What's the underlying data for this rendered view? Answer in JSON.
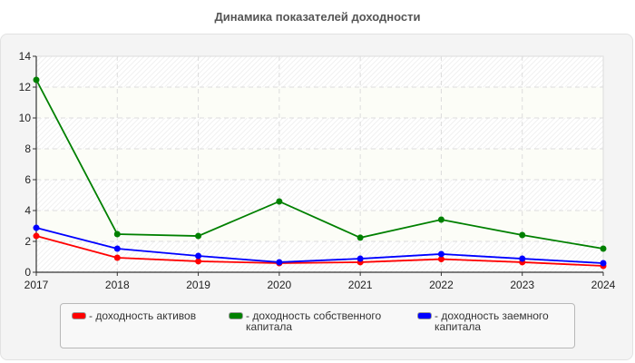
{
  "title": "Динамика показателей доходности",
  "chart_data": {
    "type": "line",
    "title": "Динамика показателей доходности",
    "xlabel": "",
    "ylabel": "",
    "categories": [
      "2017",
      "2018",
      "2019",
      "2020",
      "2021",
      "2022",
      "2023",
      "2024"
    ],
    "ylim": [
      0,
      14
    ],
    "yticks": [
      0,
      2,
      4,
      6,
      8,
      10,
      12,
      14
    ],
    "grid": true,
    "legend_position": "bottom",
    "series": [
      {
        "name": "доходность активов",
        "color": "#ff0000",
        "values": [
          2.35,
          0.94,
          0.71,
          0.59,
          0.65,
          0.85,
          0.65,
          0.41
        ]
      },
      {
        "name": "доходность собственного капитала",
        "color": "#008000",
        "values": [
          12.47,
          2.47,
          2.35,
          4.59,
          2.24,
          3.41,
          2.41,
          1.53
        ]
      },
      {
        "name": "доходность заемного капитала",
        "color": "#0000ff",
        "values": [
          2.88,
          1.53,
          1.06,
          0.65,
          0.88,
          1.18,
          0.88,
          0.59
        ]
      }
    ]
  },
  "legend": [
    {
      "label": "- доходность активов",
      "color": "#ff0000"
    },
    {
      "label": "- доходность собственного капитала",
      "color": "#008000"
    },
    {
      "label": "- доходность заемного капитала",
      "color": "#0000ff"
    }
  ]
}
